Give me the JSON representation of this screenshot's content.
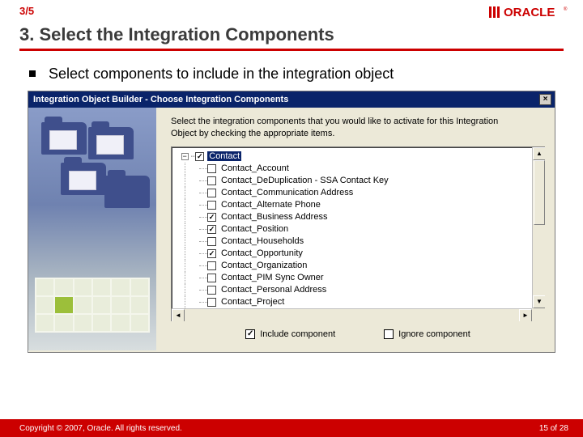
{
  "header": {
    "step": "3/5",
    "logo_text": "ORACLE",
    "logo_color": "#cc0000"
  },
  "slide": {
    "title": "3. Select the Integration Components",
    "bullet": "Select components to include in the integration object"
  },
  "dialog": {
    "title": "Integration Object Builder - Choose Integration Components",
    "instruction": "Select the integration components that you would like to activate for this Integration Object by checking the appropriate items.",
    "root": {
      "label": "Contact",
      "checked": true,
      "selected": true
    },
    "nodes": [
      {
        "label": "Contact_Account",
        "checked": false
      },
      {
        "label": "Contact_DeDuplication - SSA Contact Key",
        "checked": false
      },
      {
        "label": "Contact_Communication Address",
        "checked": false
      },
      {
        "label": "Contact_Alternate Phone",
        "checked": false
      },
      {
        "label": "Contact_Business Address",
        "checked": true
      },
      {
        "label": "Contact_Position",
        "checked": true
      },
      {
        "label": "Contact_Households",
        "checked": false
      },
      {
        "label": "Contact_Opportunity",
        "checked": true
      },
      {
        "label": "Contact_Organization",
        "checked": false
      },
      {
        "label": "Contact_PIM Sync Owner",
        "checked": false
      },
      {
        "label": "Contact_Personal Address",
        "checked": false
      },
      {
        "label": "Contact_Project",
        "checked": false
      }
    ],
    "legend_include": "Include component",
    "legend_ignore": "Ignore component"
  },
  "footer": {
    "copyright": "Copyright © 2007, Oracle. All rights reserved.",
    "page": "15",
    "of_word": "of",
    "total": "28"
  },
  "colors": {
    "brand_red": "#cc0000",
    "titlebar": "#0a246a",
    "dialog_bg": "#ece9d8"
  }
}
